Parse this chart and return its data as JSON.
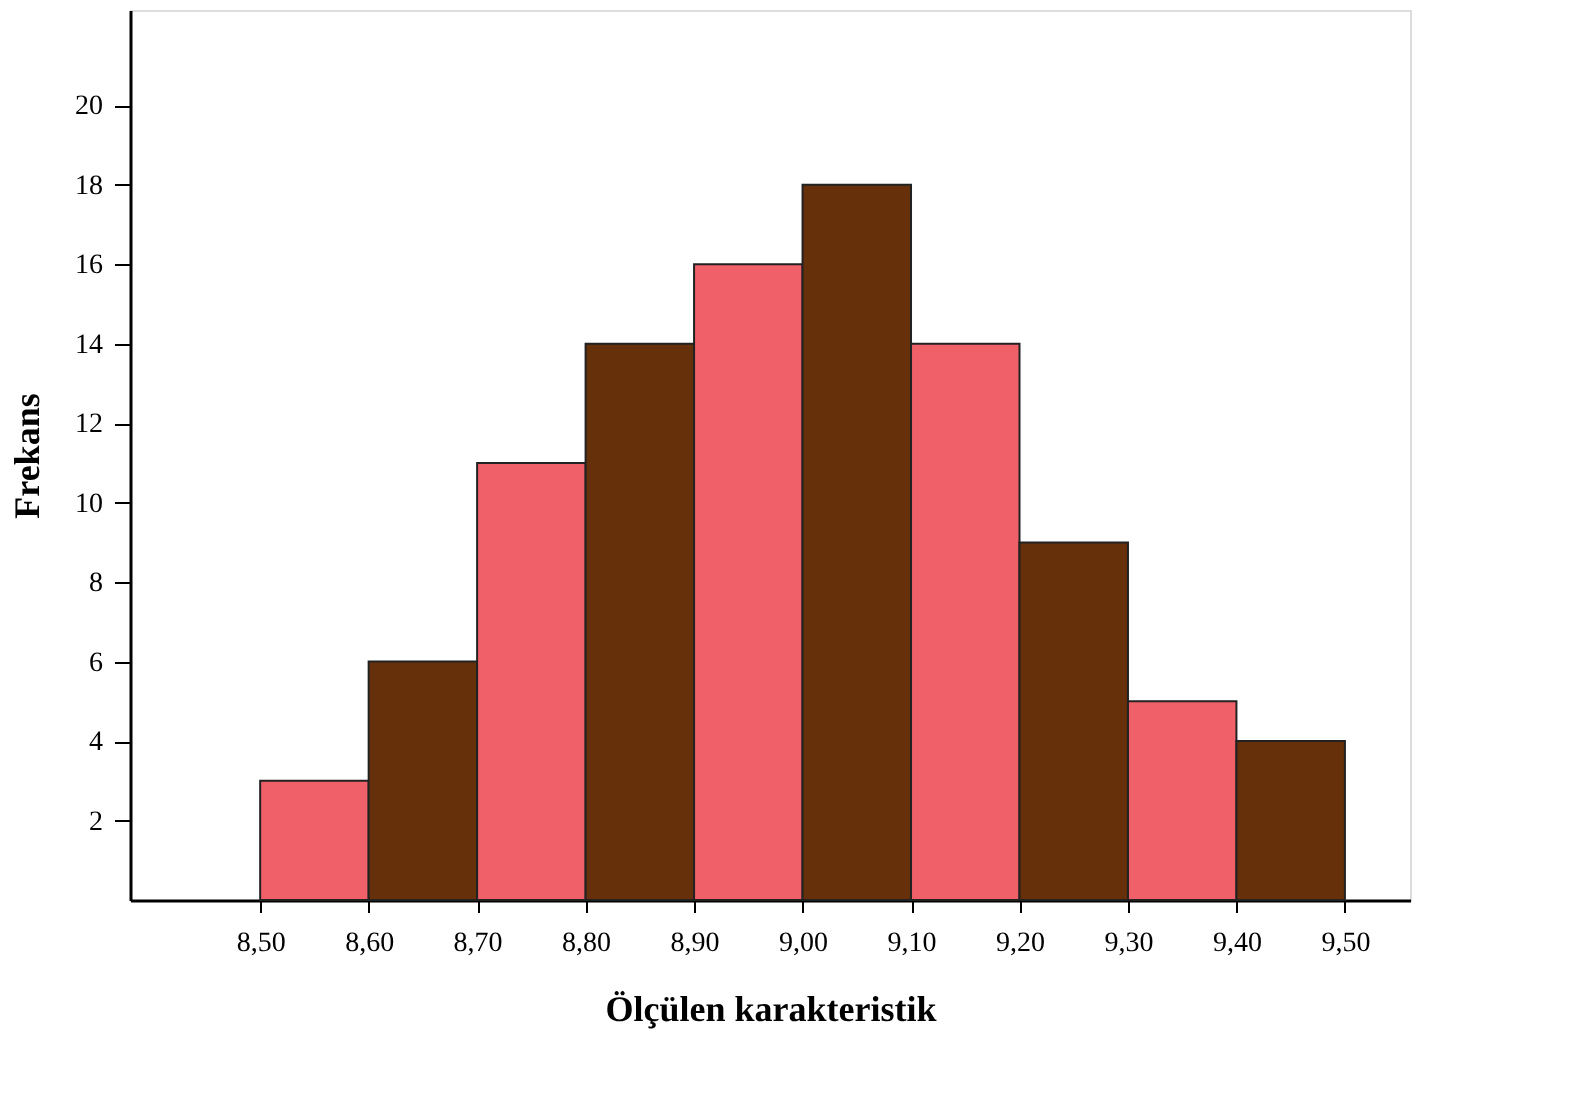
{
  "chart_data": {
    "type": "histogram",
    "xlabel": "Ölçülen karakteristik",
    "ylabel": "Frekans",
    "bins": [
      8.5,
      8.6,
      8.7,
      8.8,
      8.9,
      9.0,
      9.1,
      9.2,
      9.3,
      9.4,
      9.5
    ],
    "values": [
      3,
      6,
      11,
      14,
      16,
      18,
      14,
      9,
      5,
      4
    ],
    "colors": [
      "#f06068",
      "#66300a",
      "#f06068",
      "#66300a",
      "#f06068",
      "#66300a",
      "#f06068",
      "#66300a",
      "#f06068",
      "#66300a"
    ],
    "xlim": [
      8.38,
      9.56
    ],
    "xticks": [
      {
        "value": 8.5,
        "label": "8,50"
      },
      {
        "value": 8.6,
        "label": "8,60"
      },
      {
        "value": 8.7,
        "label": "8,70"
      },
      {
        "value": 8.8,
        "label": "8,80"
      },
      {
        "value": 8.9,
        "label": "8,90"
      },
      {
        "value": 9.0,
        "label": "9,00"
      },
      {
        "value": 9.1,
        "label": "9,10"
      },
      {
        "value": 9.2,
        "label": "9,20"
      },
      {
        "value": 9.3,
        "label": "9,30"
      },
      {
        "value": 9.4,
        "label": "9,40"
      },
      {
        "value": 9.5,
        "label": "9,50"
      }
    ],
    "ylim": [
      0,
      22.4
    ],
    "yticks": [
      2,
      4,
      6,
      8,
      10,
      12,
      14,
      16,
      18,
      20
    ],
    "grid": false
  }
}
